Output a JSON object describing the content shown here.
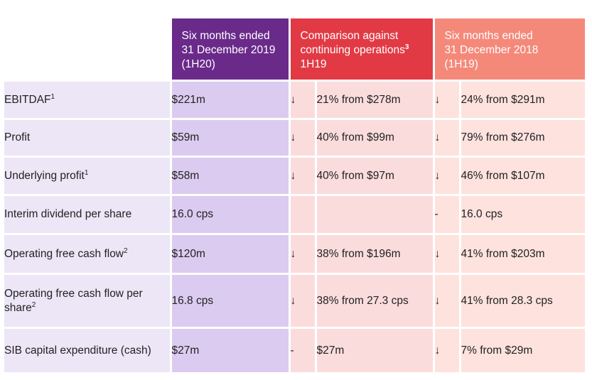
{
  "header": {
    "col_current": "Six months ended\n31 December 2019\n(1H20)",
    "col_comparison_line1": "Comparison against",
    "col_comparison_line2": "continuing operations",
    "col_comparison_sup": "3",
    "col_comparison_line3": "1H19",
    "col_prior": "Six months ended\n31 December 2018\n(1H19)"
  },
  "rows": [
    {
      "label": "EBITDAF",
      "sup": "1",
      "current": "$221m",
      "cmp_arrow": "↓",
      "cmp_text": "21% from $278m",
      "prior_arrow": "↓",
      "prior_text": "24% from $291m"
    },
    {
      "label": "Profit",
      "sup": "",
      "current": "$59m",
      "cmp_arrow": "↓",
      "cmp_text": "40% from $99m",
      "prior_arrow": "↓",
      "prior_text": "79% from $276m"
    },
    {
      "label": "Underlying profit",
      "sup": "1",
      "current": "$58m",
      "cmp_arrow": "↓",
      "cmp_text": "40% from $97m",
      "prior_arrow": "↓",
      "prior_text": "46% from $107m"
    },
    {
      "label": "Interim dividend per share",
      "sup": "",
      "current": "16.0 cps",
      "cmp_arrow": "",
      "cmp_text": "",
      "prior_arrow": "-",
      "prior_text": "16.0 cps"
    },
    {
      "label": "Operating free cash flow",
      "sup": "2",
      "current": "$120m",
      "cmp_arrow": "↓",
      "cmp_text": "38% from $196m",
      "prior_arrow": "↓",
      "prior_text": "41% from $203m"
    },
    {
      "label": "Operating free cash flow per share",
      "sup": "2",
      "current": "16.8 cps",
      "cmp_arrow": "↓",
      "cmp_text": "38% from 27.3 cps",
      "prior_arrow": "↓",
      "prior_text": "41% from 28.3 cps"
    },
    {
      "label": "SIB capital expenditure (cash)",
      "sup": "",
      "current": "$27m",
      "cmp_arrow": "-",
      "cmp_text": "$27m",
      "prior_arrow": "↓",
      "prior_text": "7% from $29m"
    }
  ]
}
